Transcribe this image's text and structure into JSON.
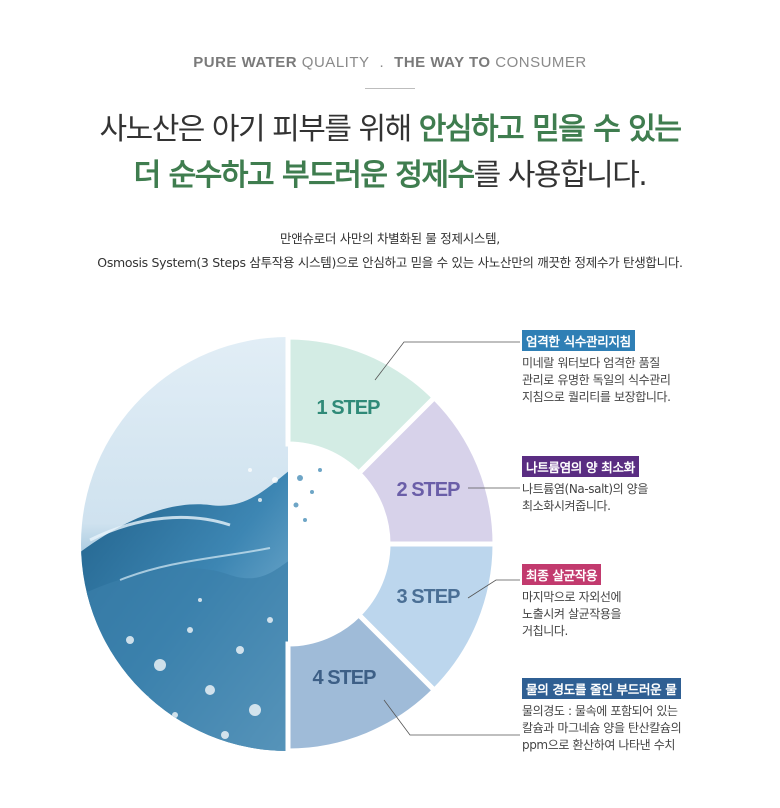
{
  "header": {
    "tagline_part1_bold": "PURE WATER",
    "tagline_part1_rest": " QUALITY",
    "tagline_dot": ".",
    "tagline_part2_bold": "THE WAY TO",
    "tagline_part2_rest": " CONSUMER",
    "headline_line1_plain": "사노산은 아기 피부를 위해 ",
    "headline_line1_highlight": "안심하고 믿을 수 있는",
    "headline_line2_highlight": "더 순수하고 부드러운 정제수",
    "headline_line2_plain": "를 사용합니다.",
    "intro_line1": "만앤슈로더 사만의 차별화된 물 정제시스템,",
    "intro_line2": "Osmosis System(3 Steps 삼투작용 시스템)으로 안심하고 믿을 수 있는 사노산만의 깨끗한 정제수가 탄생합니다."
  },
  "steps": [
    {
      "label": "1 STEP",
      "fill": "#d3ece4",
      "text_color": "#2f8a78",
      "title": "엄격한 식수관리지침",
      "title_bg": "#2f7fb5",
      "desc": [
        "미네랄 워터보다 엄격한 품질",
        "관리로 유명한 독일의 식수관리",
        "지침으로 퀄리티를 보장합니다."
      ]
    },
    {
      "label": "2 STEP",
      "fill": "#d7d2ea",
      "text_color": "#6a5ea8",
      "title": "나트륨염의 양 최소화",
      "title_bg": "#5a2d82",
      "desc": [
        "나트륨염(Na-salt)의 양을",
        "최소화시켜줍니다."
      ]
    },
    {
      "label": "3 STEP",
      "fill": "#bcd6ed",
      "text_color": "#4a6f95",
      "title": "최종 살균작용",
      "title_bg": "#c23a6e",
      "desc": [
        "마지막으로 자외선에",
        "노출시켜 살균작용을",
        "거칩니다."
      ]
    },
    {
      "label": "4 STEP",
      "fill": "#9fbbd8",
      "text_color": "#3d5f86",
      "title": "물의 경도를 줄인 부드러운 물",
      "title_bg": "#2f5f93",
      "desc": [
        "물의경도 : 물속에 포함되어 있는",
        "칼슘과 마그네슘 양을 탄산칼슘의",
        "ppm으로 환산하여 나타낸 수치"
      ]
    }
  ],
  "icons": {
    "water_image": "water-splash-icon"
  },
  "colors": {
    "headline_highlight": "#3f7d4f"
  }
}
